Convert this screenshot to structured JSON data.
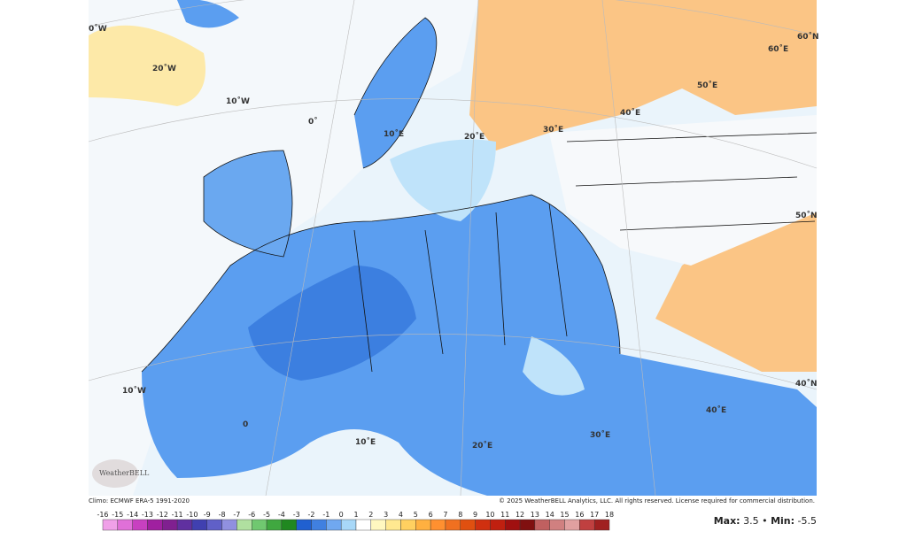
{
  "map": {
    "graticule_labels": [
      "0˚W",
      "20˚W",
      "10˚W",
      "0˚",
      "10˚E",
      "20˚E",
      "30˚E",
      "40˚E",
      "50˚E",
      "60˚E",
      "60˚N",
      "50˚N",
      "40˚N",
      "10˚W",
      "0",
      "10˚E",
      "20˚E",
      "30˚E",
      "40˚E"
    ],
    "logo": "WeatherBELL"
  },
  "footer": {
    "climo": "Climo: ECMWF ERA-5 1991-2020",
    "copyright": "© 2025 WeatherBELL Analytics, LLC. All rights reserved. License required for commercial distribution."
  },
  "colorbar": {
    "ticks": [
      -16,
      -15,
      -14,
      -13,
      -12,
      -11,
      -10,
      -9,
      -8,
      -7,
      -6,
      -5,
      -4,
      -3,
      -2,
      -1,
      0,
      1,
      2,
      3,
      4,
      5,
      6,
      7,
      8,
      9,
      10,
      11,
      12,
      13,
      14,
      15,
      16,
      17,
      18
    ],
    "colors": [
      "#f0a0e8",
      "#e070d8",
      "#c840c0",
      "#a020a0",
      "#802090",
      "#6030a0",
      "#4040b0",
      "#6060c8",
      "#9090e0",
      "#b0e0a0",
      "#70c870",
      "#40a840",
      "#208820",
      "#2060d0",
      "#4080e0",
      "#70a8f0",
      "#a8d8f8",
      "#ffffff",
      "#fff8c0",
      "#ffe890",
      "#ffd060",
      "#ffb040",
      "#ff9030",
      "#f07020",
      "#e05010",
      "#d03010",
      "#c02010",
      "#a01010",
      "#801010",
      "#c06060",
      "#d08080",
      "#e0a0a0",
      "#c04040",
      "#a02020"
    ]
  },
  "stats": {
    "max_label": "Max:",
    "max": 3.5,
    "separator": "•",
    "min_label": "Min:",
    "min": -5.5
  }
}
